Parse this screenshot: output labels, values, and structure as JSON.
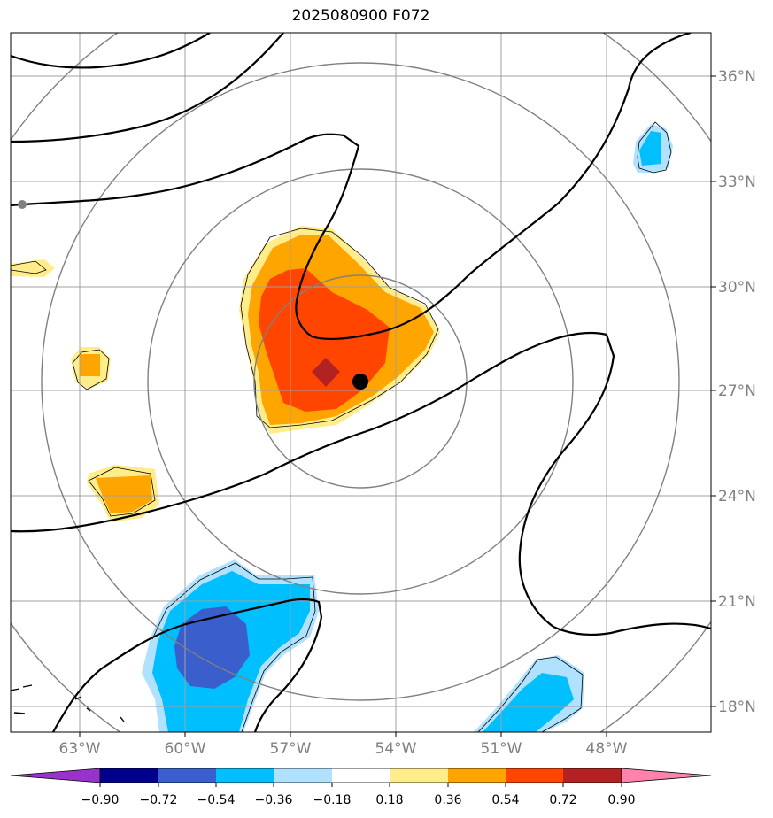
{
  "title": "2025080900 F072",
  "map": {
    "lon_range": [
      -65,
      -45
    ],
    "lat_range": [
      17.3,
      37.2
    ],
    "lon_ticks": [
      {
        "value": -63,
        "label": "63°W"
      },
      {
        "value": -60,
        "label": "60°W"
      },
      {
        "value": -57,
        "label": "57°W"
      },
      {
        "value": -54,
        "label": "54°W"
      },
      {
        "value": -51,
        "label": "51°W"
      },
      {
        "value": -48,
        "label": "48°W"
      }
    ],
    "lat_ticks": [
      {
        "value": 36,
        "label": "36°N"
      },
      {
        "value": 33,
        "label": "33°N"
      },
      {
        "value": 30,
        "label": "30°N"
      },
      {
        "value": 27,
        "label": "27°N"
      },
      {
        "value": 24,
        "label": "24°N"
      },
      {
        "value": 21,
        "label": "21°N"
      },
      {
        "value": 18,
        "label": "18°N"
      }
    ],
    "storm_center": {
      "lon": -55.0,
      "lat": 27.2
    },
    "range_rings_deg": [
      3,
      6,
      9,
      12
    ],
    "grid": true
  },
  "colorbar": {
    "ticks": [
      "−0.90",
      "−0.72",
      "−0.54",
      "−0.36",
      "−0.18",
      "0.18",
      "0.36",
      "0.54",
      "0.72",
      "0.90"
    ],
    "colors": [
      "#9932cc",
      "#00008b",
      "#3a5fcd",
      "#00bfff",
      "#b0e2ff",
      "#ffffff",
      "#ffec8b",
      "#ffa500",
      "#ff4500",
      "#b22222",
      "#ff82ab"
    ]
  },
  "colors": {
    "pos_1": "#ffec8b",
    "pos_2": "#ffa500",
    "pos_3": "#ff4500",
    "pos_4": "#b22222",
    "neg_1": "#b0e2ff",
    "neg_2": "#00bfff",
    "neg_3": "#3a5fcd",
    "grid": "#a0a0a0",
    "rings": "#808080"
  }
}
